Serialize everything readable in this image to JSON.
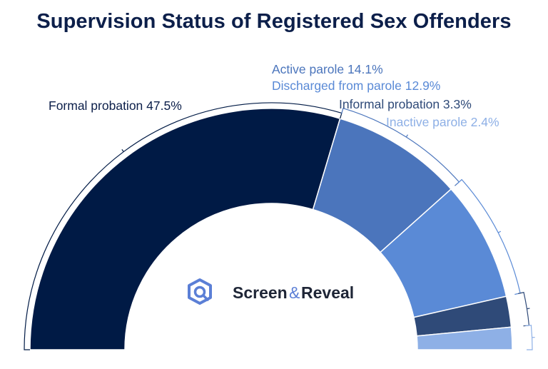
{
  "chart_data": {
    "type": "pie",
    "subtype": "semi-donut",
    "title": "Supervision Status of Registered Sex Offenders",
    "slices": [
      {
        "label": "Formal probation",
        "value": 47.5,
        "display": "Formal probation 47.5%",
        "color": "#001a45",
        "label_color": "#0c1f4a"
      },
      {
        "label": "Active parole",
        "value": 14.1,
        "display": "Active parole 14.1%",
        "color": "#4b75bc",
        "label_color": "#4b75bc"
      },
      {
        "label": "Discharged from parole",
        "value": 12.9,
        "display": "Discharged from parole 12.9%",
        "color": "#5a8ad6",
        "label_color": "#5a8ad6"
      },
      {
        "label": "Informal probation",
        "value": 3.3,
        "display": "Informal probation 3.3%",
        "color": "#2f4a78",
        "label_color": "#2f4a78"
      },
      {
        "label": "Inactive parole",
        "value": 2.4,
        "display": "Inactive parole 2.4%",
        "color": "#8eb0e6",
        "label_color": "#8eb0e6"
      }
    ]
  },
  "brand": {
    "word1": "Screen",
    "amp": "&",
    "word2": "Reveal",
    "icon": "screen-reveal-logo-icon",
    "icon_color": "#5b7fd6"
  }
}
